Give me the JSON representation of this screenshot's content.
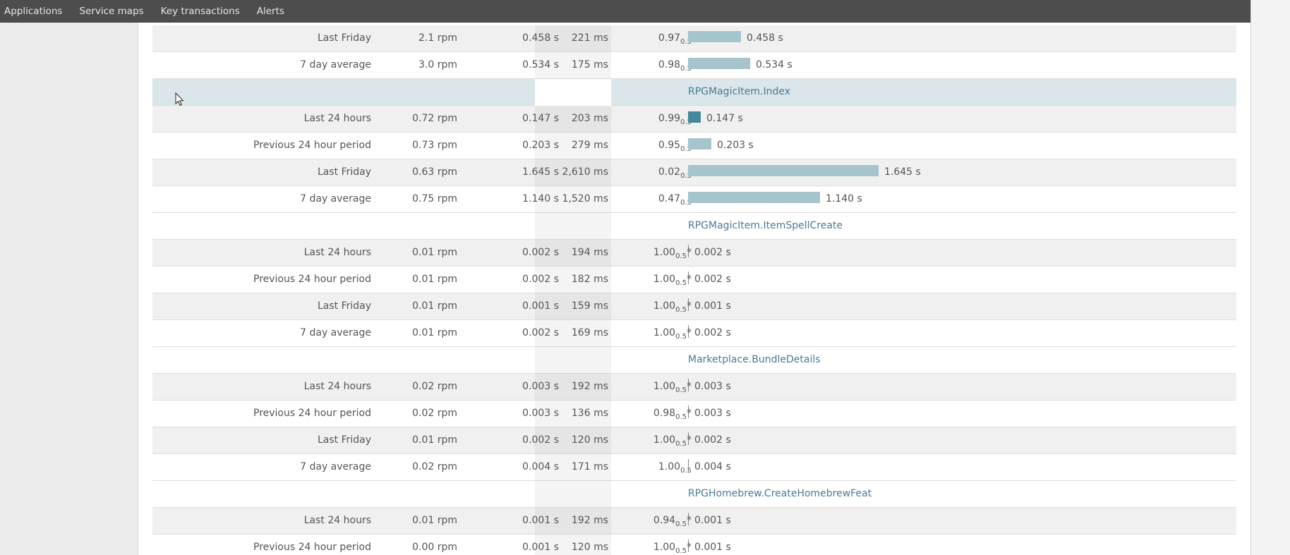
{
  "nav": {
    "items": [
      {
        "label": "Applications"
      },
      {
        "label": "Service maps"
      },
      {
        "label": "Key transactions"
      },
      {
        "label": "Alerts"
      }
    ]
  },
  "colors": {
    "bar": "#a6c4cc",
    "bar_highlight": "#46879a",
    "link": "#4a7a95",
    "active_group_bg": "#dbe6ea"
  },
  "rows": [
    {
      "type": "data",
      "label": "Last Friday",
      "rpm": "2.1 rpm",
      "time": "0.458 s",
      "ms": "221 ms",
      "apdex": "0.97",
      "apdex_t": "0.5",
      "star": "",
      "bar_value": 0.458,
      "bar_label": "0.458 s",
      "highlight": false,
      "shaded": true
    },
    {
      "type": "data",
      "label": "7 day average",
      "rpm": "3.0 rpm",
      "time": "0.534 s",
      "ms": "175 ms",
      "apdex": "0.98",
      "apdex_t": "0.5",
      "star": "",
      "bar_value": 0.534,
      "bar_label": "0.534 s",
      "highlight": false,
      "shaded": false
    },
    {
      "type": "group",
      "name": "RPGMagicItem.Index",
      "active": true
    },
    {
      "type": "data",
      "label": "Last 24 hours",
      "rpm": "0.72 rpm",
      "time": "0.147 s",
      "ms": "203 ms",
      "apdex": "0.99",
      "apdex_t": "0.5",
      "star": "",
      "bar_value": 0.147,
      "bar_label": "0.147 s",
      "highlight": true,
      "shaded": true
    },
    {
      "type": "data",
      "label": "Previous 24 hour period",
      "rpm": "0.73 rpm",
      "time": "0.203 s",
      "ms": "279 ms",
      "apdex": "0.95",
      "apdex_t": "0.5",
      "star": "",
      "bar_value": 0.203,
      "bar_label": "0.203 s",
      "highlight": false,
      "shaded": false
    },
    {
      "type": "data",
      "label": "Last Friday",
      "rpm": "0.63 rpm",
      "time": "1.645 s",
      "ms": "2,610 ms",
      "apdex": "0.02",
      "apdex_t": "0.5",
      "star": "",
      "bar_value": 1.645,
      "bar_label": "1.645 s",
      "highlight": false,
      "shaded": true
    },
    {
      "type": "data",
      "label": "7 day average",
      "rpm": "0.75 rpm",
      "time": "1.140 s",
      "ms": "1,520 ms",
      "apdex": "0.47",
      "apdex_t": "0.5",
      "star": "",
      "bar_value": 1.14,
      "bar_label": "1.140 s",
      "highlight": false,
      "shaded": false
    },
    {
      "type": "group",
      "name": "RPGMagicItem.ItemSpellCreate",
      "active": false
    },
    {
      "type": "data",
      "label": "Last 24 hours",
      "rpm": "0.01 rpm",
      "time": "0.002 s",
      "ms": "194 ms",
      "apdex": "1.00",
      "apdex_t": "0.5",
      "star": "*",
      "bar_value": 0.002,
      "bar_label": "0.002 s",
      "highlight": false,
      "shaded": true
    },
    {
      "type": "data",
      "label": "Previous 24 hour period",
      "rpm": "0.01 rpm",
      "time": "0.002 s",
      "ms": "182 ms",
      "apdex": "1.00",
      "apdex_t": "0.5",
      "star": "*",
      "bar_value": 0.002,
      "bar_label": "0.002 s",
      "highlight": false,
      "shaded": false
    },
    {
      "type": "data",
      "label": "Last Friday",
      "rpm": "0.01 rpm",
      "time": "0.001 s",
      "ms": "159 ms",
      "apdex": "1.00",
      "apdex_t": "0.5",
      "star": "*",
      "bar_value": 0.001,
      "bar_label": "0.001 s",
      "highlight": false,
      "shaded": true
    },
    {
      "type": "data",
      "label": "7 day average",
      "rpm": "0.01 rpm",
      "time": "0.002 s",
      "ms": "169 ms",
      "apdex": "1.00",
      "apdex_t": "0.5",
      "star": "*",
      "bar_value": 0.002,
      "bar_label": "0.002 s",
      "highlight": false,
      "shaded": false
    },
    {
      "type": "group",
      "name": "Marketplace.BundleDetails",
      "active": false
    },
    {
      "type": "data",
      "label": "Last 24 hours",
      "rpm": "0.02 rpm",
      "time": "0.003 s",
      "ms": "192 ms",
      "apdex": "1.00",
      "apdex_t": "0.5",
      "star": "*",
      "bar_value": 0.003,
      "bar_label": "0.003 s",
      "highlight": false,
      "shaded": true
    },
    {
      "type": "data",
      "label": "Previous 24 hour period",
      "rpm": "0.02 rpm",
      "time": "0.003 s",
      "ms": "136 ms",
      "apdex": "0.98",
      "apdex_t": "0.5",
      "star": "*",
      "bar_value": 0.003,
      "bar_label": "0.003 s",
      "highlight": false,
      "shaded": false
    },
    {
      "type": "data",
      "label": "Last Friday",
      "rpm": "0.01 rpm",
      "time": "0.002 s",
      "ms": "120 ms",
      "apdex": "1.00",
      "apdex_t": "0.5",
      "star": "*",
      "bar_value": 0.002,
      "bar_label": "0.002 s",
      "highlight": false,
      "shaded": true
    },
    {
      "type": "data",
      "label": "7 day average",
      "rpm": "0.02 rpm",
      "time": "0.004 s",
      "ms": "171 ms",
      "apdex": "1.00",
      "apdex_t": "0.5",
      "star": "",
      "bar_value": 0.004,
      "bar_label": "0.004 s",
      "highlight": false,
      "shaded": false
    },
    {
      "type": "group",
      "name": "RPGHomebrew.CreateHomebrewFeat",
      "active": false
    },
    {
      "type": "data",
      "label": "Last 24 hours",
      "rpm": "0.01 rpm",
      "time": "0.001 s",
      "ms": "192 ms",
      "apdex": "0.94",
      "apdex_t": "0.5",
      "star": "*",
      "bar_value": 0.001,
      "bar_label": "0.001 s",
      "highlight": false,
      "shaded": true
    },
    {
      "type": "data",
      "label": "Previous 24 hour period",
      "rpm": "0.00 rpm",
      "time": "0.001 s",
      "ms": "120 ms",
      "apdex": "1.00",
      "apdex_t": "0.5",
      "star": "*",
      "bar_value": 0.001,
      "bar_label": "0.001 s",
      "highlight": false,
      "shaded": false
    }
  ]
}
